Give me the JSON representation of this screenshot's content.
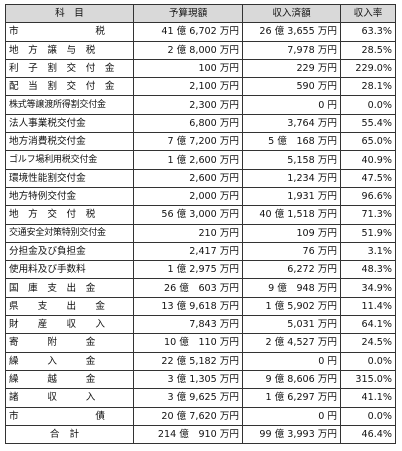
{
  "headers": [
    "科　目",
    "予算現額",
    "収入済額",
    "収入率"
  ],
  "rows": [
    {
      "item": "市　　　　　　　　税",
      "budget": "41 億 6,702 万円",
      "received": "26 億 3,655 万円",
      "rate": "63.3%"
    },
    {
      "item": "地　方　譲　与　税",
      "budget": "2 億 8,000 万円",
      "received": "7,978 万円",
      "rate": "28.5%"
    },
    {
      "item": "利　子　割　交　付　金",
      "budget": "100 万円",
      "received": "229 万円",
      "rate": "229.0%"
    },
    {
      "item": "配　当　割　交　付　金",
      "budget": "2,100 万円",
      "received": "590 万円",
      "rate": "28.1%"
    },
    {
      "item": "株式等譲渡所得割交付金",
      "budget": "2,300 万円",
      "received": "0 円",
      "rate": "0.0%"
    },
    {
      "item": "法人事業税交付金",
      "budget": "6,800 万円",
      "received": "3,764 万円",
      "rate": "55.4%"
    },
    {
      "item": "地方消費税交付金",
      "budget": "7 億 7,200 万円",
      "received": "5 億　168 万円",
      "rate": "65.0%"
    },
    {
      "item": "ゴルフ場利用税交付金",
      "budget": "1 億 2,600 万円",
      "received": "5,158 万円",
      "rate": "40.9%"
    },
    {
      "item": "環境性能割交付金",
      "budget": "2,600 万円",
      "received": "1,234 万円",
      "rate": "47.5%"
    },
    {
      "item": "地方特例交付金",
      "budget": "2,000 万円",
      "received": "1,931 万円",
      "rate": "96.6%"
    },
    {
      "item": "地　方　交　付　税",
      "budget": "56 億 3,000 万円",
      "received": "40 億 1,518 万円",
      "rate": "71.3%"
    },
    {
      "item": "交通安全対策特別交付金",
      "budget": "210 万円",
      "received": "109 万円",
      "rate": "51.9%"
    },
    {
      "item": "分担金及び負担金",
      "budget": "2,417 万円",
      "received": "76 万円",
      "rate": "3.1%"
    },
    {
      "item": "使用料及び手数料",
      "budget": "1 億 2,975 万円",
      "received": "6,272 万円",
      "rate": "48.3%"
    },
    {
      "item": "国　庫　支　出　金",
      "budget": "26 億　603 万円",
      "received": "9 億　948 万円",
      "rate": "34.9%"
    },
    {
      "item": "県　　支　　出　　金",
      "budget": "13 億 9,618 万円",
      "received": "1 億 5,902 万円",
      "rate": "11.4%"
    },
    {
      "item": "財　　産　　収　　入",
      "budget": "7,843 万円",
      "received": "5,031 万円",
      "rate": "64.1%"
    },
    {
      "item": "寄　　　附　　　金",
      "budget": "10 億　110 万円",
      "received": "2 億 4,527 万円",
      "rate": "24.5%"
    },
    {
      "item": "繰　　　入　　　金",
      "budget": "22 億 5,182 万円",
      "received": "0 円",
      "rate": "0.0%"
    },
    {
      "item": "繰　　　越　　　金",
      "budget": "3 億 1,305 万円",
      "received": "9 億 8,606 万円",
      "rate": "315.0%"
    },
    {
      "item": "諸　　　収　　　入",
      "budget": "3 億 9,625 万円",
      "received": "1 億 6,297 万円",
      "rate": "41.1%"
    },
    {
      "item": "市　　　　　　　　債",
      "budget": "20 億 7,620 万円",
      "received": "0 円",
      "rate": "0.0%"
    }
  ],
  "total": {
    "item": "合計",
    "budget": "214 億　910 万円",
    "received": "99 億 3,993 万円",
    "rate": "46.4%"
  }
}
